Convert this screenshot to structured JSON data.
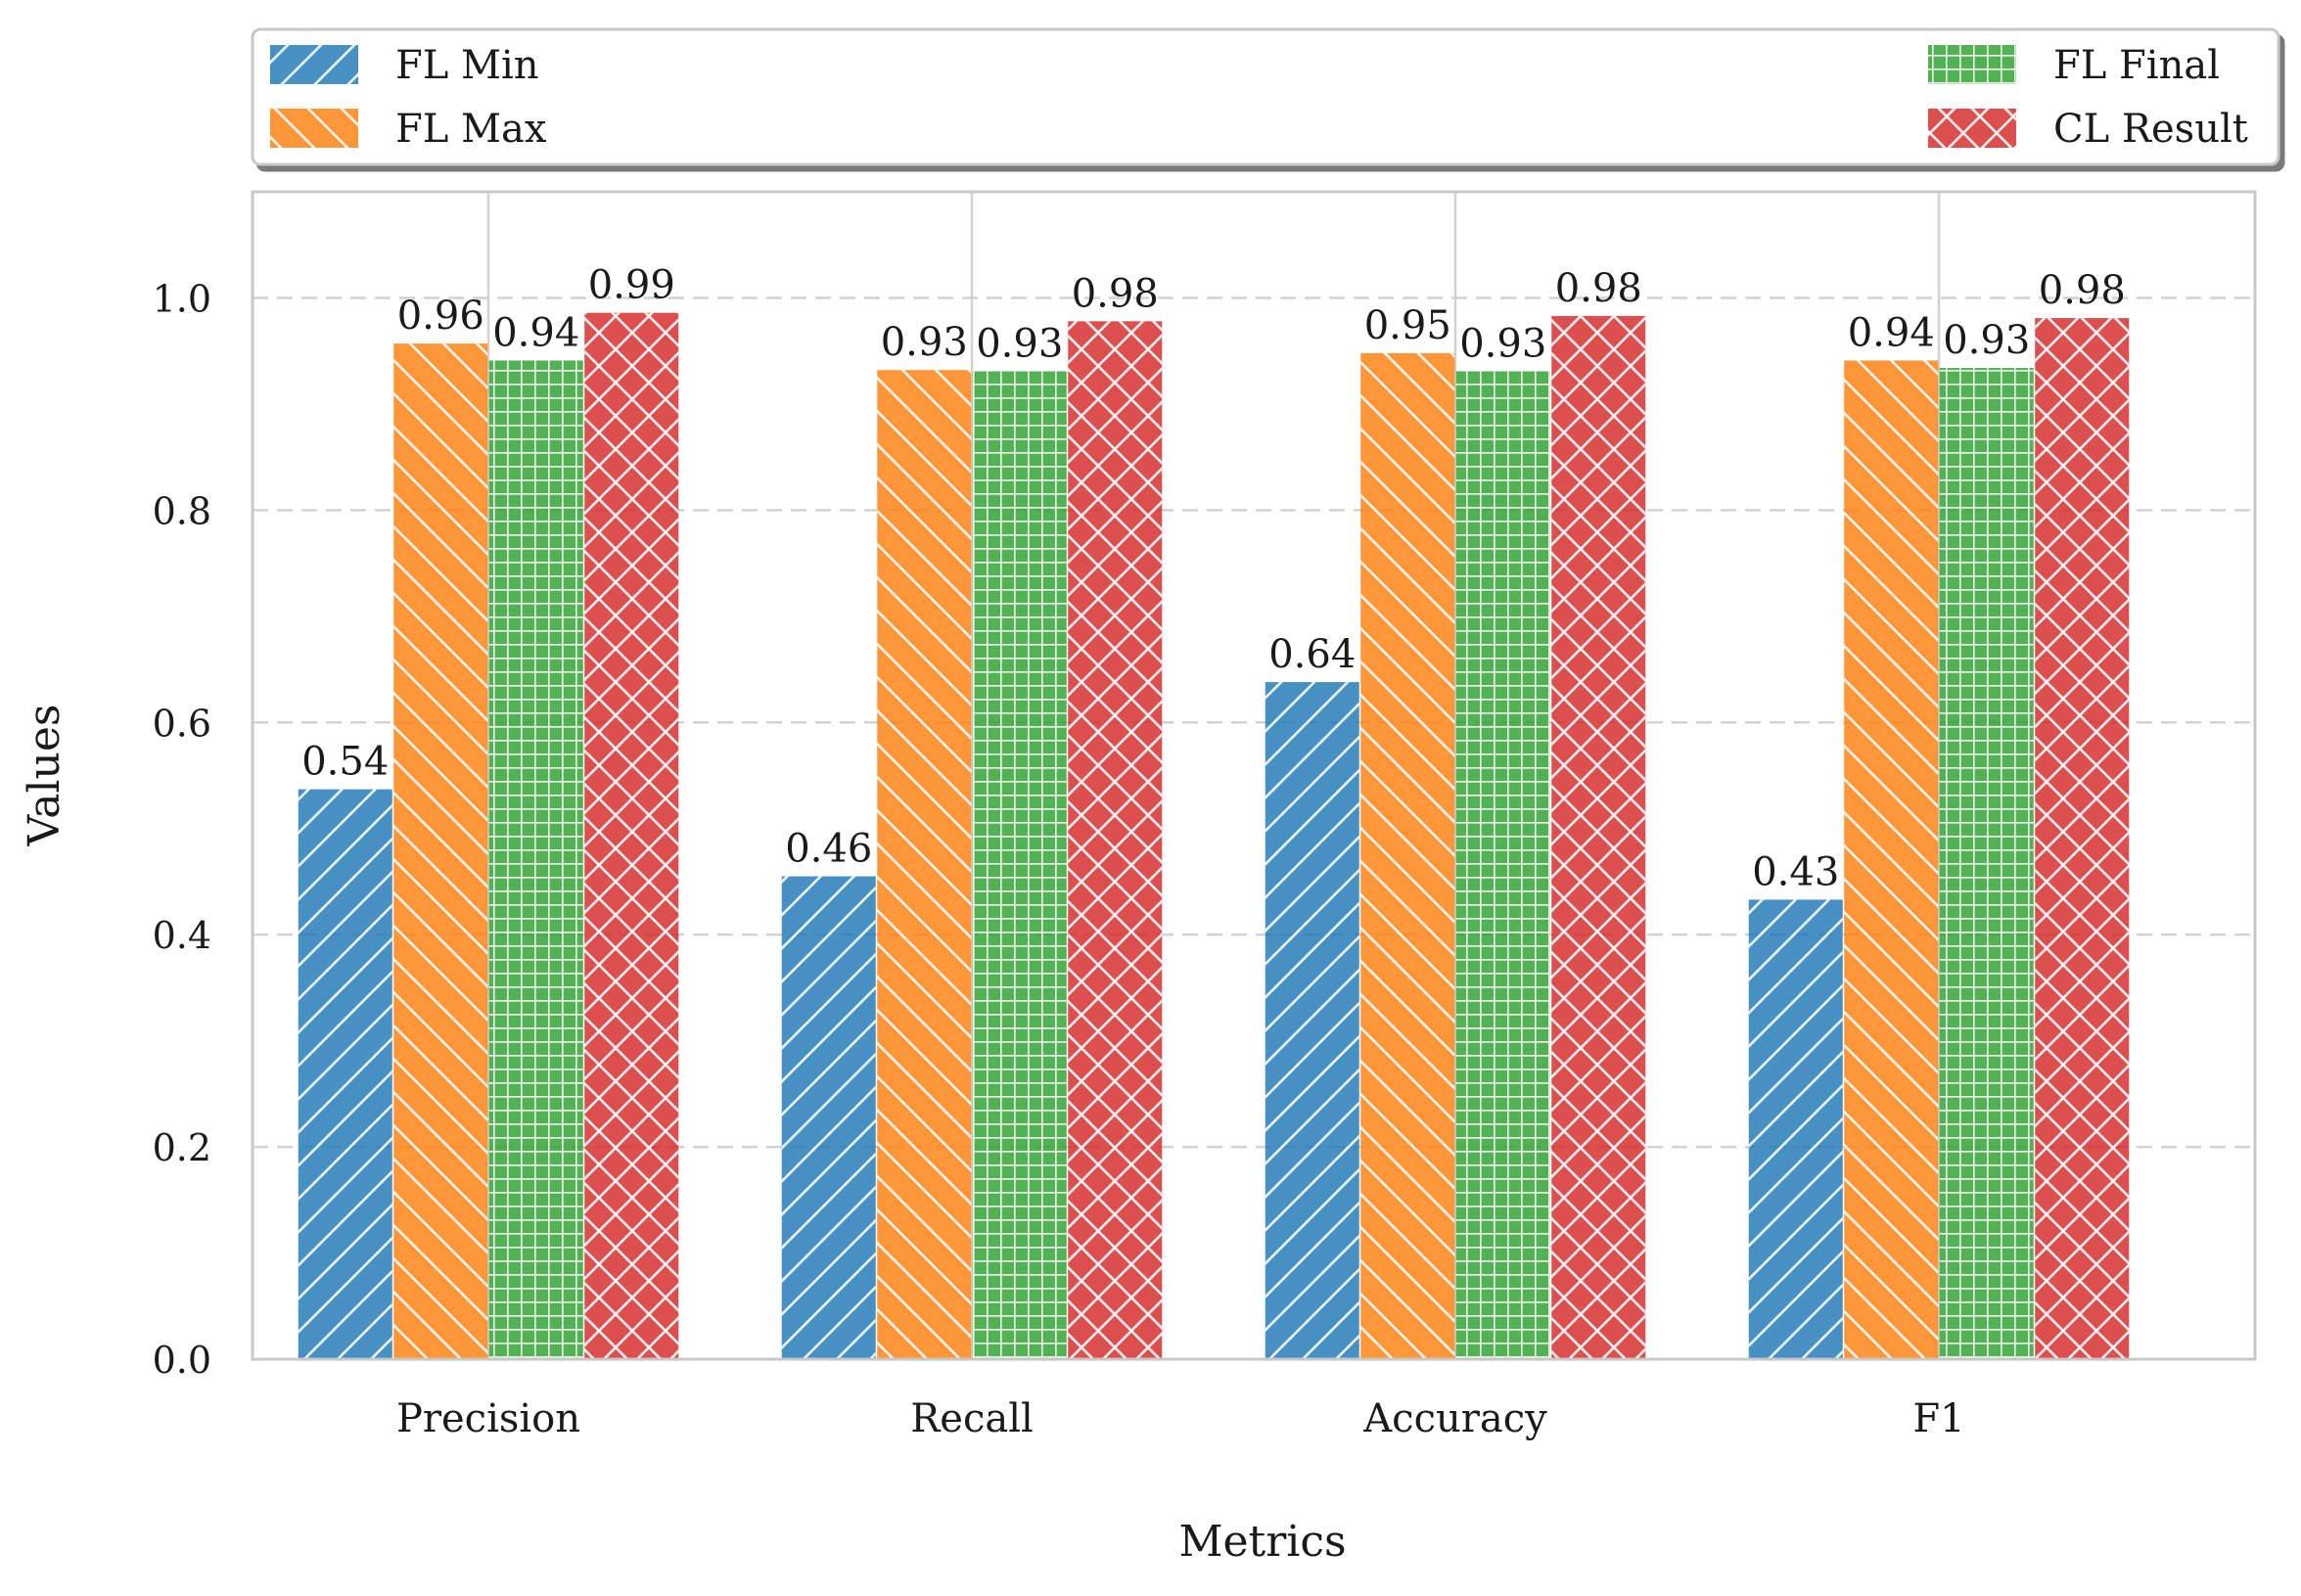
{
  "chart_data": {
    "type": "bar",
    "title": "",
    "xlabel": "Metrics",
    "ylabel": "Values",
    "categories": [
      "Precision",
      "Recall",
      "Accuracy",
      "F1"
    ],
    "ylim": [
      0,
      1.1
    ],
    "yticks": [
      0.0,
      0.2,
      0.4,
      0.6,
      0.8,
      1.0
    ],
    "ytick_labels": [
      "0.0",
      "0.2",
      "0.4",
      "0.6",
      "0.8",
      "1.0"
    ],
    "grid": "y-dashed",
    "legend_position": "top, above plot",
    "series": [
      {
        "name": "FL Min",
        "values": [
          0.537,
          0.455,
          0.638,
          0.433
        ],
        "labels": [
          "0.54",
          "0.46",
          "0.64",
          "0.43"
        ],
        "color": "#1f77b4",
        "hatch": "diagonal-forward"
      },
      {
        "name": "FL Max",
        "values": [
          0.957,
          0.932,
          0.948,
          0.941
        ],
        "labels": [
          "0.96",
          "0.93",
          "0.95",
          "0.94"
        ],
        "color": "#ff7f0e",
        "hatch": "diagonal-back"
      },
      {
        "name": "FL Final",
        "values": [
          0.941,
          0.931,
          0.931,
          0.934
        ],
        "labels": [
          "0.94",
          "0.93",
          "0.93",
          "0.93"
        ],
        "color": "#2ca02c",
        "hatch": "grid"
      },
      {
        "name": "CL Result",
        "values": [
          0.986,
          0.978,
          0.983,
          0.981
        ],
        "labels": [
          "0.99",
          "0.98",
          "0.98",
          "0.98"
        ],
        "color": "#d62728",
        "hatch": "crosshatch"
      }
    ]
  }
}
